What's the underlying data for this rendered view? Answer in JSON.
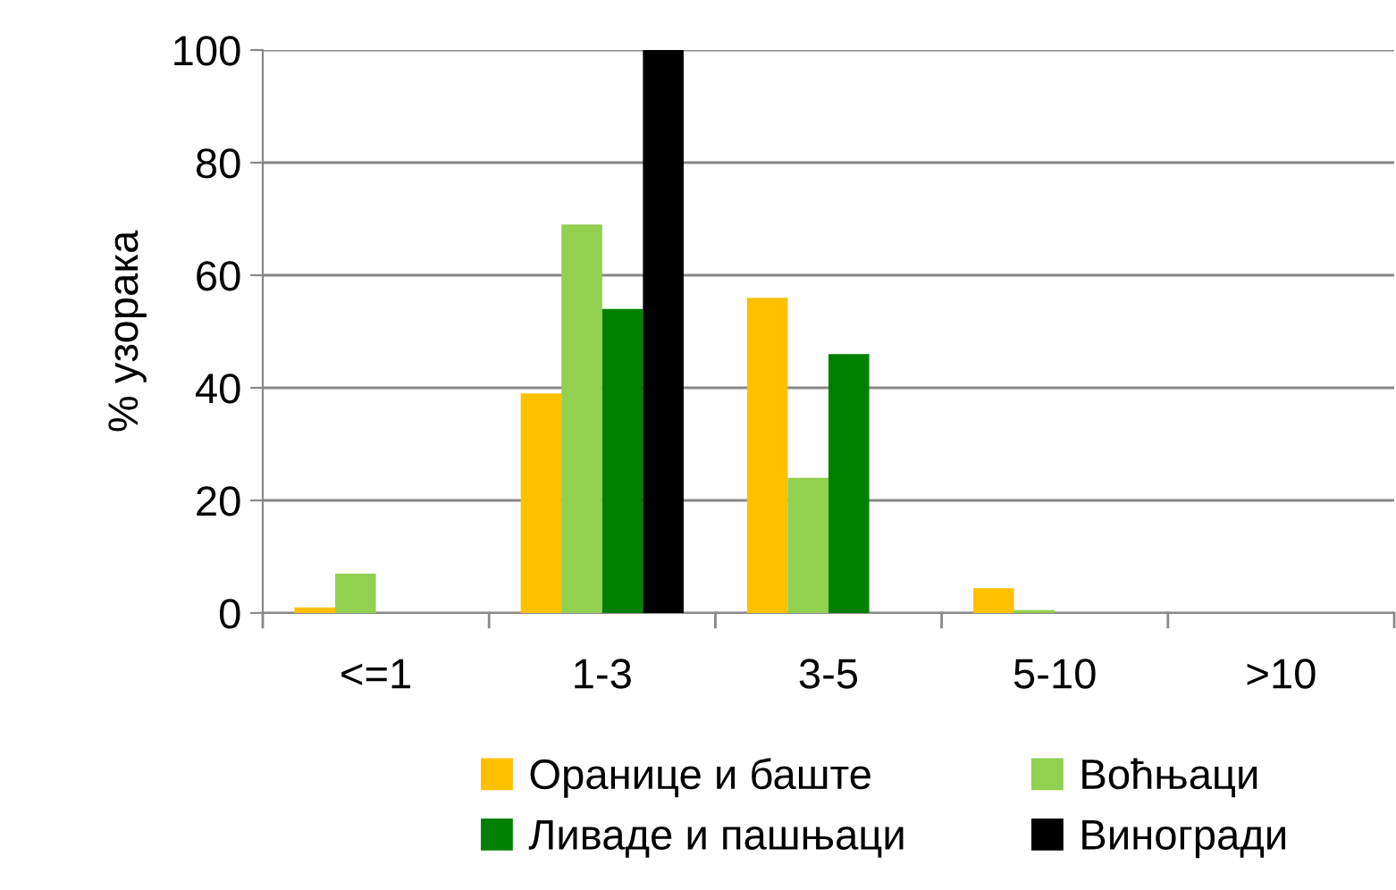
{
  "chart_data": {
    "type": "bar",
    "ylabel": "% узорака",
    "categories": [
      "<=1",
      "1-3",
      "3-5",
      "5-10",
      ">10"
    ],
    "series": [
      {
        "name": "Оранице и баште",
        "color": "#ffc000",
        "values": [
          1,
          39,
          56,
          4.4,
          0
        ]
      },
      {
        "name": "Воћњаци",
        "color": "#92d050",
        "values": [
          7,
          69,
          24,
          0.5,
          0
        ]
      },
      {
        "name": "Ливаде и пашњаци",
        "color": "#008000",
        "values": [
          0,
          54,
          46,
          0,
          0
        ]
      },
      {
        "name": "Виногради",
        "color": "#000000",
        "values": [
          0,
          100,
          0,
          0,
          0
        ]
      }
    ],
    "ylim": [
      0,
      100
    ],
    "yticks": [
      0,
      20,
      40,
      60,
      80,
      100
    ],
    "grid": "y",
    "legend": "bottom"
  }
}
